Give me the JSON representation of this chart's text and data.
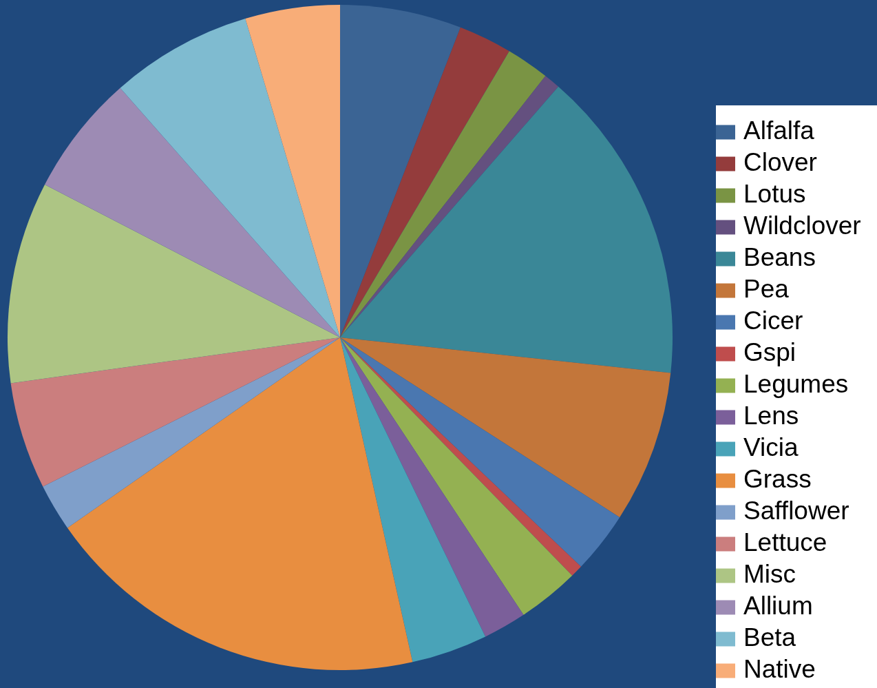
{
  "chart_data": {
    "type": "pie",
    "categories": [
      "Alfalfa",
      "Clover",
      "Lotus",
      "Wildclover",
      "Beans",
      "Pea",
      "Cicer",
      "Gspi",
      "Legumes",
      "Lens",
      "Vicia",
      "Grass",
      "Safflower",
      "Lettuce",
      "Misc",
      "Allium",
      "Beta",
      "Native"
    ],
    "values": [
      5.9,
      2.6,
      2.1,
      0.8,
      15.3,
      7.4,
      3.0,
      0.6,
      3.0,
      2.1,
      3.7,
      18.8,
      2.3,
      5.2,
      9.8,
      5.9,
      6.9,
      4.6
    ],
    "colors": [
      "#3b6494",
      "#943c3c",
      "#7a9444",
      "#64507f",
      "#3a8797",
      "#c3763a",
      "#4a77b0",
      "#bf4d4d",
      "#94b152",
      "#7b5f9a",
      "#49a3b8",
      "#e88e40",
      "#7f9fca",
      "#cb7e7e",
      "#adc584",
      "#9d8bb4",
      "#7fbbd0",
      "#f8ad78"
    ],
    "legend": "right"
  }
}
